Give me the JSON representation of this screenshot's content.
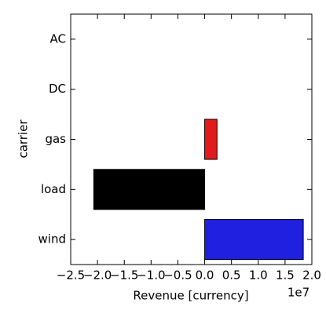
{
  "chart_data": {
    "type": "barh",
    "categories": [
      "AC",
      "DC",
      "gas",
      "load",
      "wind"
    ],
    "values": [
      0,
      0,
      0.23,
      -2.07,
      1.84
    ],
    "colors": [
      "#000000",
      "#000000",
      "#e31a1c",
      "#000000",
      "#2020e0"
    ],
    "xlabel": "Revenue [currency]",
    "ylabel": "carrier",
    "x_offset_label": "1e7",
    "xlim": [
      -2.5,
      2.0
    ],
    "xticks": [
      {
        "value": -2.5,
        "label": "−2.5"
      },
      {
        "value": -2.0,
        "label": "−2.0"
      },
      {
        "value": -1.5,
        "label": "−1.5"
      },
      {
        "value": -1.0,
        "label": "−1.0"
      },
      {
        "value": -0.5,
        "label": "−0.5"
      },
      {
        "value": 0,
        "label": "0.0"
      },
      0.5,
      {
        "value": 1.0,
        "label": "1.0"
      },
      1.5,
      {
        "value": 2.0,
        "label": "2.0"
      }
    ],
    "grid": false
  }
}
